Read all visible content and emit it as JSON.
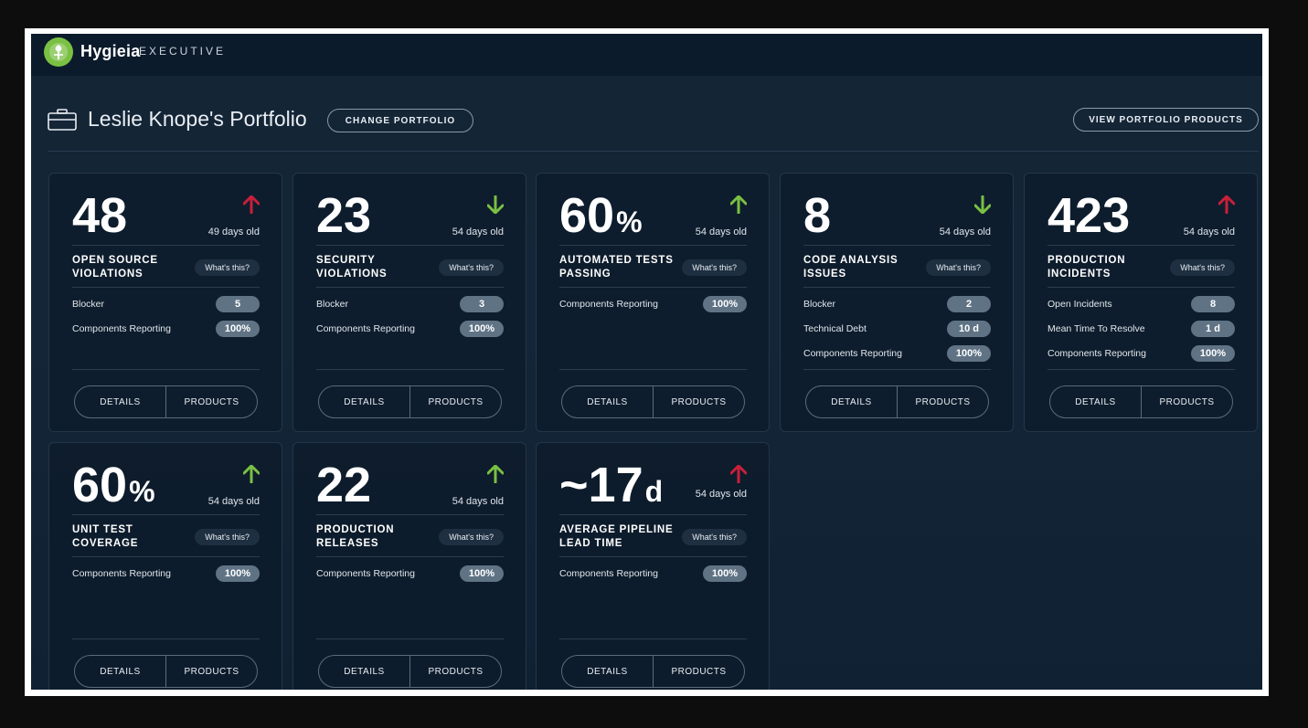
{
  "header": {
    "brand": "Hygieia",
    "brand_sub": "EXECUTIVE"
  },
  "portfolio": {
    "title": "Leslie Knope's Portfolio",
    "change_label": "CHANGE PORTFOLIO",
    "view_products_label": "VIEW PORTFOLIO PRODUCTS"
  },
  "colors": {
    "up_bad": "#c8203a",
    "good": "#7ac043"
  },
  "cards": [
    {
      "value": "48",
      "unit": "",
      "trend": "up",
      "trend_color": "#c8203a",
      "age": "49 days old",
      "name": "OPEN SOURCE VIOLATIONS",
      "whats": "What's this?",
      "rows": [
        {
          "label": "Blocker",
          "value": "5"
        },
        {
          "label": "Components Reporting",
          "value": "100%"
        }
      ],
      "details": "DETAILS",
      "products": "PRODUCTS"
    },
    {
      "value": "23",
      "unit": "",
      "trend": "down",
      "trend_color": "#7ac043",
      "age": "54 days old",
      "name": "SECURITY VIOLATIONS",
      "whats": "What's this?",
      "rows": [
        {
          "label": "Blocker",
          "value": "3"
        },
        {
          "label": "Components Reporting",
          "value": "100%"
        }
      ],
      "details": "DETAILS",
      "products": "PRODUCTS"
    },
    {
      "value": "60",
      "unit": "%",
      "trend": "up",
      "trend_color": "#7ac043",
      "age": "54 days old",
      "name": "AUTOMATED TESTS PASSING",
      "whats": "What's this?",
      "rows": [
        {
          "label": "Components Reporting",
          "value": "100%"
        }
      ],
      "details": "DETAILS",
      "products": "PRODUCTS"
    },
    {
      "value": "8",
      "unit": "",
      "trend": "down",
      "trend_color": "#7ac043",
      "age": "54 days old",
      "name": "CODE ANALYSIS ISSUES",
      "whats": "What's this?",
      "rows": [
        {
          "label": "Blocker",
          "value": "2"
        },
        {
          "label": "Technical Debt",
          "value": "10 d"
        },
        {
          "label": "Components Reporting",
          "value": "100%"
        }
      ],
      "details": "DETAILS",
      "products": "PRODUCTS"
    },
    {
      "value": "423",
      "unit": "",
      "trend": "up",
      "trend_color": "#c8203a",
      "age": "54 days old",
      "name": "PRODUCTION INCIDENTS",
      "whats": "What's this?",
      "rows": [
        {
          "label": "Open Incidents",
          "value": "8"
        },
        {
          "label": "Mean Time To Resolve",
          "value": "1 d"
        },
        {
          "label": "Components Reporting",
          "value": "100%"
        }
      ],
      "details": "DETAILS",
      "products": "PRODUCTS"
    },
    {
      "value": "60",
      "unit": "%",
      "trend": "up",
      "trend_color": "#7ac043",
      "age": "54 days old",
      "name": "UNIT TEST COVERAGE",
      "whats": "What's this?",
      "rows": [
        {
          "label": "Components Reporting",
          "value": "100%"
        }
      ],
      "details": "DETAILS",
      "products": "PRODUCTS"
    },
    {
      "value": "22",
      "unit": "",
      "trend": "up",
      "trend_color": "#7ac043",
      "age": "54 days old",
      "name": "PRODUCTION RELEASES",
      "whats": "What's this?",
      "rows": [
        {
          "label": "Components Reporting",
          "value": "100%"
        }
      ],
      "details": "DETAILS",
      "products": "PRODUCTS"
    },
    {
      "value": "~17",
      "unit": "d",
      "trend": "up",
      "trend_color": "#c8203a",
      "age": "54 days old",
      "name": "AVERAGE PIPELINE LEAD TIME",
      "whats": "What's this?",
      "rows": [
        {
          "label": "Components Reporting",
          "value": "100%"
        }
      ],
      "details": "DETAILS",
      "products": "PRODUCTS"
    }
  ]
}
